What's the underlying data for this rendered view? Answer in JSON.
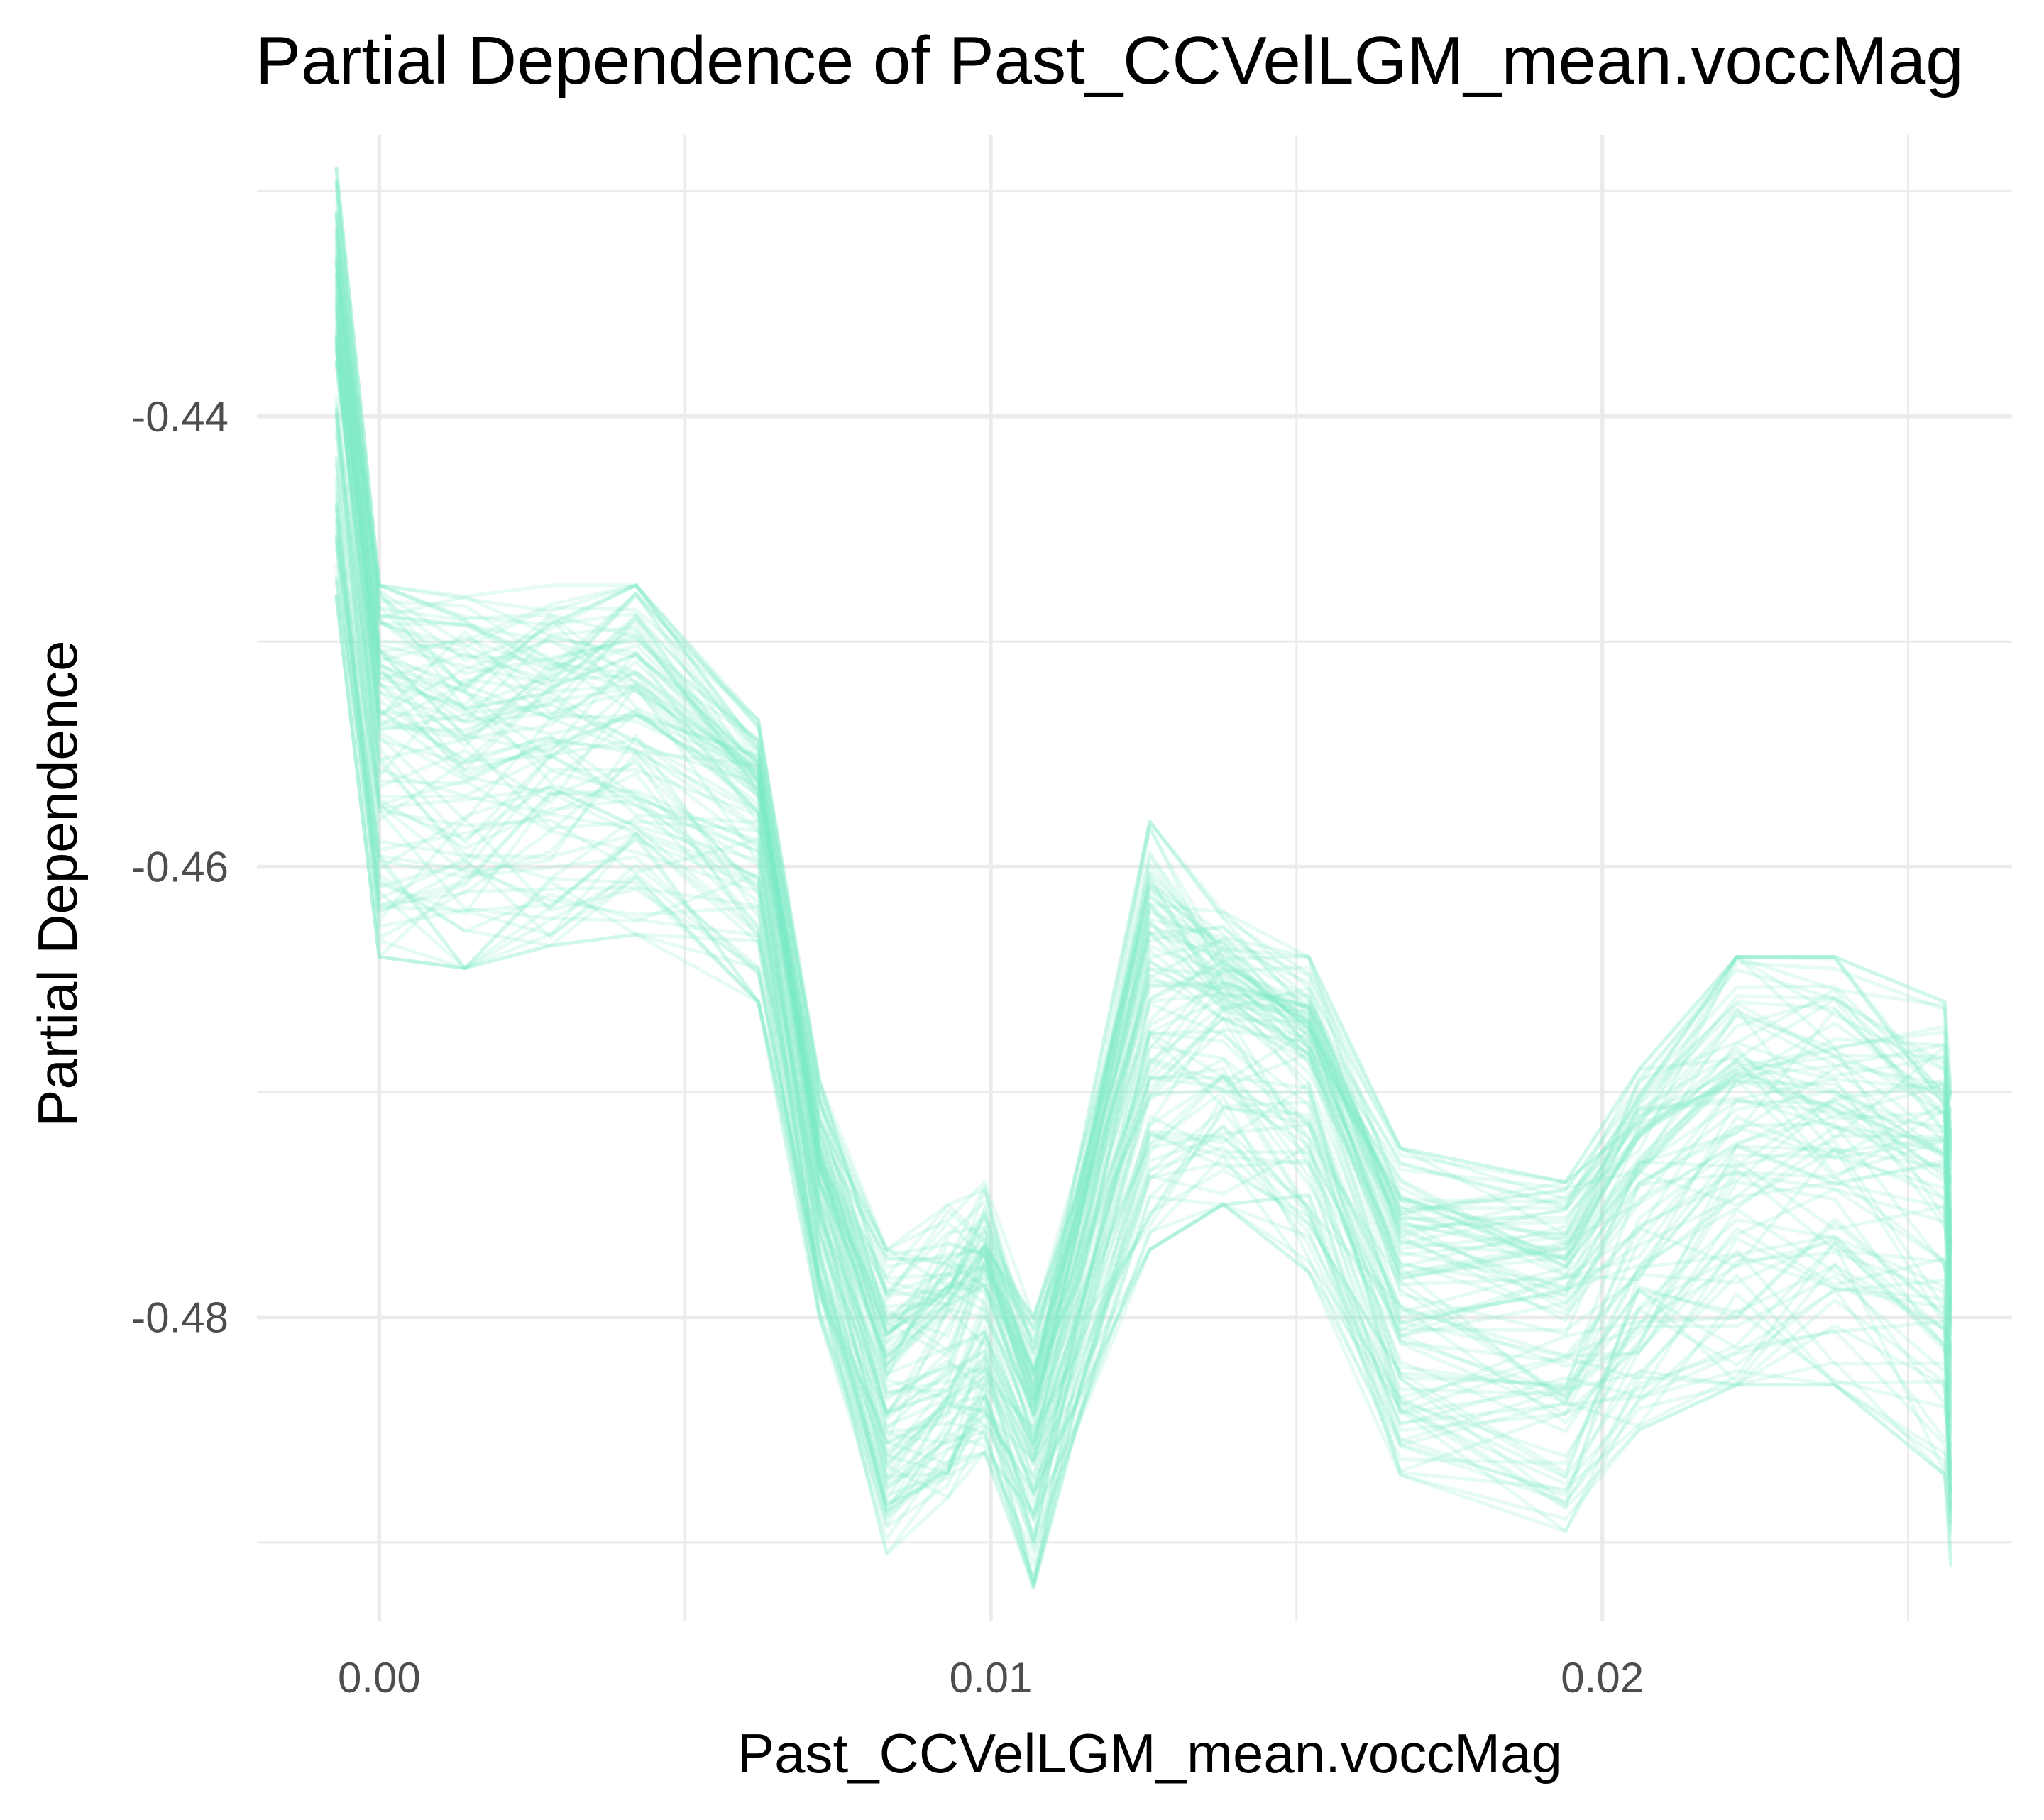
{
  "chart_data": {
    "type": "line",
    "title": "Partial Dependence of Past_CCVelLGM_mean.voccMag",
    "xlabel": "Past_CCVelLGM_mean.voccMag",
    "ylabel": "Partial Dependence",
    "x_ticks": [
      0.0,
      0.01,
      0.02
    ],
    "x_tick_labels": [
      "0.00",
      "0.01",
      "0.02"
    ],
    "y_ticks": [
      -0.44,
      -0.46,
      -0.48
    ],
    "y_tick_labels": [
      "-0.44",
      "-0.46",
      "-0.48"
    ],
    "xlim": [
      -0.002,
      0.0267
    ],
    "ylim": [
      -0.4935,
      -0.4275
    ],
    "grid": true,
    "legend": "none",
    "line_color": "#7FEBC6",
    "line_opacity": 0.2,
    "series_count": 100,
    "x": [
      -0.0007,
      0.0,
      0.0014,
      0.0028,
      0.0042,
      0.0062,
      0.0072,
      0.0083,
      0.0093,
      0.0099,
      0.0107,
      0.0114,
      0.0126,
      0.0138,
      0.0152,
      0.0167,
      0.0194,
      0.0206,
      0.0222,
      0.0238,
      0.0256,
      0.0257
    ],
    "mean_curve": [
      -0.4375,
      -0.4545,
      -0.4555,
      -0.455,
      -0.4545,
      -0.458,
      -0.4745,
      -0.484,
      -0.482,
      -0.4795,
      -0.4855,
      -0.479,
      -0.468,
      -0.467,
      -0.469,
      -0.479,
      -0.48,
      -0.476,
      -0.473,
      -0.473,
      -0.4745,
      -0.48
    ],
    "min_curve": [
      -0.448,
      -0.464,
      -0.4645,
      -0.4635,
      -0.463,
      -0.466,
      -0.48,
      -0.4905,
      -0.488,
      -0.486,
      -0.492,
      -0.485,
      -0.477,
      -0.475,
      -0.478,
      -0.487,
      -0.4895,
      -0.485,
      -0.483,
      -0.483,
      -0.487,
      -0.491
    ],
    "max_curve": [
      -0.429,
      -0.4475,
      -0.448,
      -0.4475,
      -0.4475,
      -0.4535,
      -0.4695,
      -0.477,
      -0.475,
      -0.474,
      -0.48,
      -0.4735,
      -0.458,
      -0.462,
      -0.464,
      -0.4725,
      -0.474,
      -0.469,
      -0.464,
      -0.464,
      -0.466,
      -0.47
    ]
  }
}
